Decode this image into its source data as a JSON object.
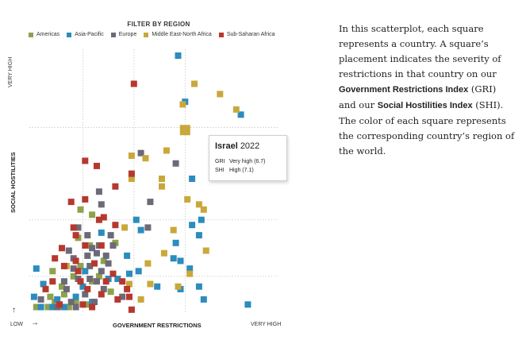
{
  "filter": {
    "title": "FILTER BY REGION",
    "regions": [
      {
        "label": "Americas",
        "color": "#8ea24b"
      },
      {
        "label": "Asia-Pacific",
        "color": "#2b8cbe"
      },
      {
        "label": "Europe",
        "color": "#6d6a78"
      },
      {
        "label": "Middle East-North Africa",
        "color": "#c9a83a"
      },
      {
        "label": "Sub-Saharan Africa",
        "color": "#b5382f"
      }
    ]
  },
  "axes": {
    "y_high": "VERY HIGH",
    "y_title": "SOCIAL HOSTILITIES",
    "x_low": "LOW",
    "x_title": "GOVERNMENT RESTRICTIONS",
    "x_high": "VERY HIGH",
    "up_arrow": "↑",
    "right_arrow": "→"
  },
  "tooltip": {
    "country": "Israel",
    "year": "2022",
    "gri_key": "GRI",
    "gri_value": "Very high (6.7)",
    "shi_key": "SHI",
    "shi_value": "High (7.1)"
  },
  "description": {
    "part1": "In this scatterplot, each square represents a country. A square’s placement indicates the severity of restrictions in that country on our ",
    "gri_name": "Government Restrictions Index",
    "part2": " (GRI) and our ",
    "shi_name": "Social Hostilities Index",
    "part3": " (SHI). The color of each square represents the corresponding country’s region of the world."
  },
  "chart_data": {
    "type": "scatter",
    "x_label": "GOVERNMENT RESTRICTIONS",
    "y_label": "SOCIAL HOSTILITIES",
    "xlim": [
      0,
      10
    ],
    "ylim": [
      0,
      10
    ],
    "x_gridlines": [
      2.3,
      4.5,
      6.7
    ],
    "y_gridlines": [
      1.4,
      3.6,
      7.2
    ],
    "highlight": {
      "country": "Israel",
      "x": 6.7,
      "y": 7.1,
      "region": "Middle East-North Africa"
    },
    "series": [
      {
        "name": "Americas",
        "color": "#8ea24b",
        "points": [
          [
            0.8,
            0.2
          ],
          [
            1.3,
            0.2
          ],
          [
            2.0,
            0.4
          ],
          [
            1.5,
            0.7
          ],
          [
            2.5,
            0.3
          ],
          [
            2.7,
            1.2
          ],
          [
            2.2,
            1.8
          ],
          [
            1.0,
            1.6
          ],
          [
            3.0,
            1.4
          ],
          [
            1.4,
            1.0
          ],
          [
            0.9,
            0.6
          ],
          [
            2.2,
            4.0
          ],
          [
            2.7,
            3.8
          ],
          [
            3.7,
            2.7
          ],
          [
            1.7,
            0.2
          ],
          [
            3.2,
            2.0
          ],
          [
            1.9,
            1.4
          ],
          [
            2.6,
            2.6
          ],
          [
            3.5,
            0.8
          ],
          [
            0.3,
            0.2
          ],
          [
            2.1,
            2.9
          ],
          [
            1.1,
            0.4
          ]
        ]
      },
      {
        "name": "Asia-Pacific",
        "color": "#2b8cbe",
        "points": [
          [
            6.4,
            10.0
          ],
          [
            6.7,
            8.2
          ],
          [
            9.1,
            7.7
          ],
          [
            4.6,
            3.6
          ],
          [
            4.8,
            3.2
          ],
          [
            6.3,
            2.7
          ],
          [
            7.4,
            3.6
          ],
          [
            7.0,
            3.4
          ],
          [
            7.3,
            3.0
          ],
          [
            6.5,
            2.0
          ],
          [
            6.9,
            1.7
          ],
          [
            7.3,
            1.0
          ],
          [
            7.5,
            0.5
          ],
          [
            9.4,
            0.3
          ],
          [
            7.0,
            5.2
          ],
          [
            6.2,
            2.1
          ],
          [
            4.7,
            1.6
          ],
          [
            3.4,
            1.3
          ],
          [
            0.3,
            1.7
          ],
          [
            0.5,
            0.2
          ],
          [
            1.0,
            0.2
          ],
          [
            1.2,
            0.5
          ],
          [
            1.5,
            0.2
          ],
          [
            2.0,
            0.6
          ],
          [
            2.4,
            1.6
          ],
          [
            4.2,
            2.2
          ],
          [
            2.3,
            1.0
          ],
          [
            5.5,
            1.0
          ],
          [
            6.5,
            0.9
          ],
          [
            4.3,
            1.5
          ],
          [
            2.7,
            0.4
          ],
          [
            0.2,
            0.6
          ],
          [
            3.1,
            3.1
          ],
          [
            0.6,
            1.1
          ],
          [
            3.8,
            1.3
          ]
        ]
      },
      {
        "name": "Europe",
        "color": "#6d6a78",
        "points": [
          [
            4.8,
            6.2
          ],
          [
            6.3,
            5.8
          ],
          [
            5.2,
            4.3
          ],
          [
            5.1,
            3.3
          ],
          [
            3.1,
            4.2
          ],
          [
            2.5,
            3.0
          ],
          [
            2.9,
            2.3
          ],
          [
            3.4,
            1.9
          ],
          [
            3.6,
            2.6
          ],
          [
            2.6,
            1.3
          ],
          [
            1.9,
            2.1
          ],
          [
            2.1,
            1.3
          ],
          [
            2.4,
            0.7
          ],
          [
            2.8,
            0.4
          ],
          [
            1.5,
            1.2
          ],
          [
            1.2,
            0.2
          ],
          [
            3.5,
            3.0
          ],
          [
            3.1,
            1.6
          ],
          [
            1.8,
            0.4
          ],
          [
            2.6,
            1.8
          ],
          [
            3.0,
            4.7
          ],
          [
            1.6,
            0.9
          ],
          [
            2.1,
            3.3
          ],
          [
            1.7,
            2.4
          ],
          [
            0.5,
            0.5
          ],
          [
            2.9,
            1.2
          ],
          [
            3.2,
            0.9
          ],
          [
            2.0,
            0.2
          ],
          [
            3.0,
            2.6
          ],
          [
            4.0,
            0.6
          ],
          [
            2.7,
            2.5
          ],
          [
            1.9,
            1.7
          ],
          [
            3.3,
            2.2
          ],
          [
            2.5,
            2.2
          ]
        ]
      },
      {
        "name": "Middle East-North Africa",
        "color": "#c9a83a",
        "points": [
          [
            8.2,
            8.5
          ],
          [
            8.9,
            7.9
          ],
          [
            6.6,
            8.1
          ],
          [
            7.1,
            8.9
          ],
          [
            5.0,
            6.0
          ],
          [
            5.9,
            6.3
          ],
          [
            4.4,
            6.1
          ],
          [
            5.7,
            5.2
          ],
          [
            5.7,
            4.9
          ],
          [
            6.2,
            3.2
          ],
          [
            6.8,
            4.4
          ],
          [
            7.3,
            4.2
          ],
          [
            7.5,
            4.0
          ],
          [
            4.4,
            5.2
          ],
          [
            4.1,
            3.3
          ],
          [
            5.8,
            2.3
          ],
          [
            6.9,
            1.5
          ],
          [
            6.4,
            1.0
          ],
          [
            5.1,
            1.9
          ],
          [
            4.3,
            1.1
          ],
          [
            4.8,
            0.5
          ],
          [
            1.6,
            1.8
          ],
          [
            5.2,
            1.1
          ],
          [
            7.6,
            2.4
          ]
        ]
      },
      {
        "name": "Sub-Saharan Africa",
        "color": "#b5382f",
        "points": [
          [
            4.5,
            8.9
          ],
          [
            4.4,
            5.4
          ],
          [
            2.4,
            5.9
          ],
          [
            2.9,
            5.7
          ],
          [
            3.7,
            4.9
          ],
          [
            3.7,
            3.4
          ],
          [
            3.2,
            3.7
          ],
          [
            2.4,
            4.4
          ],
          [
            1.8,
            4.3
          ],
          [
            1.9,
            3.3
          ],
          [
            2.4,
            2.6
          ],
          [
            3.1,
            2.6
          ],
          [
            3.0,
            3.6
          ],
          [
            2.0,
            3.0
          ],
          [
            3.6,
            1.5
          ],
          [
            3.3,
            1.2
          ],
          [
            2.2,
            1.2
          ],
          [
            2.5,
            0.9
          ],
          [
            2.7,
            0.2
          ],
          [
            1.4,
            2.5
          ],
          [
            1.5,
            1.8
          ],
          [
            3.1,
            0.7
          ],
          [
            4.4,
            0.1
          ],
          [
            4.0,
            1.2
          ],
          [
            2.1,
            1.6
          ],
          [
            2.0,
            2.0
          ],
          [
            1.3,
            0.3
          ],
          [
            2.8,
            1.9
          ],
          [
            3.8,
            0.5
          ],
          [
            1.0,
            1.2
          ],
          [
            1.1,
            2.1
          ],
          [
            4.2,
            0.9
          ],
          [
            4.3,
            0.6
          ],
          [
            0.7,
            0.9
          ],
          [
            2.3,
            0.3
          ]
        ]
      }
    ]
  }
}
